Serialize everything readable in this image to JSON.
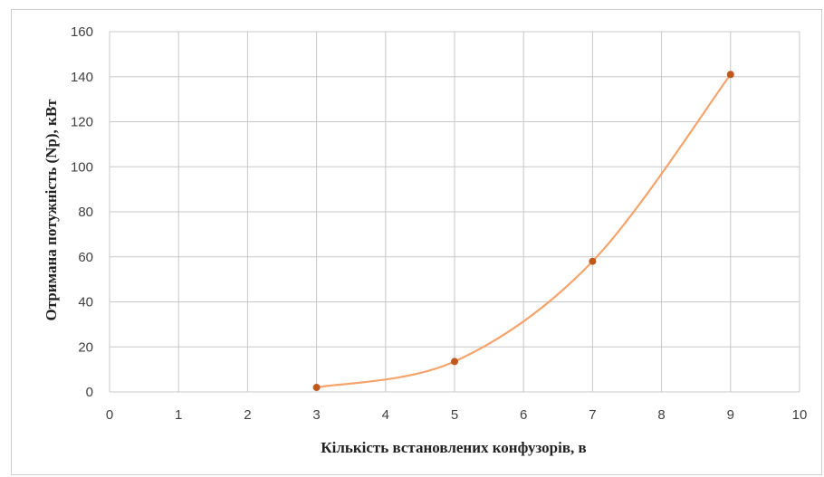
{
  "chart_data": {
    "type": "line",
    "title": "",
    "xlabel": "Кількість встановлених конфузорів, в",
    "ylabel": "Отримана потужність (Np), кВт",
    "xlim": [
      0,
      10
    ],
    "ylim": [
      0,
      160
    ],
    "x_ticks": [
      "0",
      "1",
      "2",
      "3",
      "4",
      "5",
      "6",
      "7",
      "8",
      "9",
      "10"
    ],
    "y_ticks": [
      "0",
      "20",
      "40",
      "60",
      "80",
      "100",
      "120",
      "140",
      "160"
    ],
    "grid": true,
    "legend": "none",
    "smooth": true,
    "series": [
      {
        "color": "#f4a46c",
        "marker_color": "#c0591e",
        "x": [
          3,
          5,
          7,
          9
        ],
        "y": [
          2,
          13.5,
          58,
          141
        ]
      }
    ]
  }
}
